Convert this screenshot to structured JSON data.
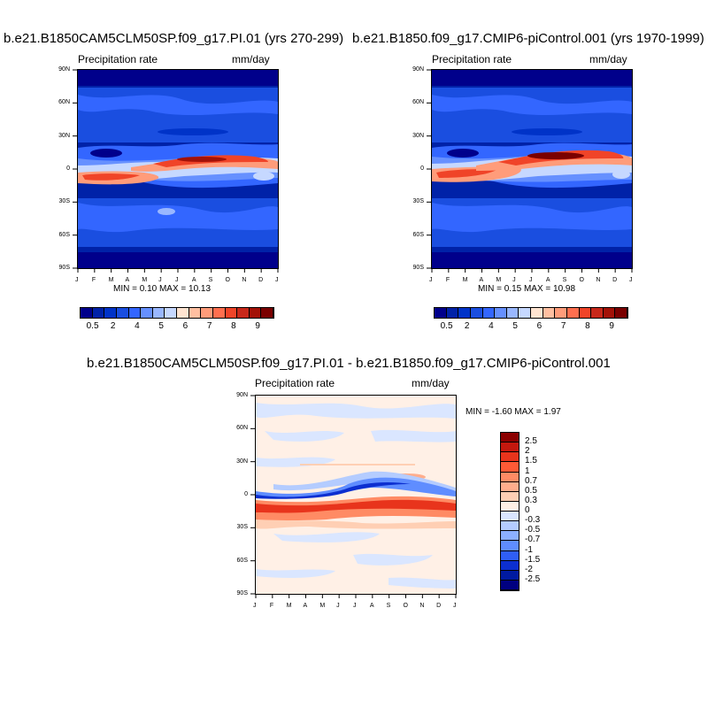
{
  "chart_data": [
    {
      "type": "heatmap",
      "title": "b.e21.B1850CAM5CLM50SP.f09_g17.PI.01 (yrs 270-299)",
      "subtitle_left": "Precipitation rate",
      "subtitle_right": "mm/day",
      "x_tick_labels": [
        "J",
        "F",
        "M",
        "A",
        "M",
        "J",
        "J",
        "A",
        "S",
        "O",
        "N",
        "D",
        "J"
      ],
      "y_tick_labels": [
        "90N",
        "60N",
        "30N",
        "0",
        "30S",
        "60S",
        "90S"
      ],
      "stats": "MIN =   0.10 MAX =  10.13",
      "colorbar_ticks": [
        "0.5",
        "2",
        "4",
        "5",
        "6",
        "7",
        "8",
        "9"
      ],
      "colorbar_colors": [
        "#00008b",
        "#0022a8",
        "#0033c8",
        "#1a4ee0",
        "#3366ff",
        "#6690ff",
        "#99b7ff",
        "#c6d8ff",
        "#ffe4d1",
        "#ffbfa1",
        "#ff9c7a",
        "#ff6f4f",
        "#f04428",
        "#c8281a",
        "#a31208",
        "#7a0000"
      ]
    },
    {
      "type": "heatmap",
      "title": "b.e21.B1850.f09_g17.CMIP6-piControl.001 (yrs 1970-1999)",
      "subtitle_left": "Precipitation rate",
      "subtitle_right": "mm/day",
      "x_tick_labels": [
        "J",
        "F",
        "M",
        "A",
        "M",
        "J",
        "J",
        "A",
        "S",
        "O",
        "N",
        "D",
        "J"
      ],
      "y_tick_labels": [
        "90N",
        "60N",
        "30N",
        "0",
        "30S",
        "60S",
        "90S"
      ],
      "stats": "MIN =   0.15 MAX =  10.98",
      "colorbar_ticks": [
        "0.5",
        "2",
        "4",
        "5",
        "6",
        "7",
        "8",
        "9"
      ],
      "colorbar_colors": [
        "#00008b",
        "#0022a8",
        "#0033c8",
        "#1a4ee0",
        "#3366ff",
        "#6690ff",
        "#99b7ff",
        "#c6d8ff",
        "#ffe4d1",
        "#ffbfa1",
        "#ff9c7a",
        "#ff6f4f",
        "#f04428",
        "#c8281a",
        "#a31208",
        "#7a0000"
      ]
    },
    {
      "type": "heatmap",
      "title": "b.e21.B1850CAM5CLM50SP.f09_g17.PI.01 - b.e21.B1850.f09_g17.CMIP6-piControl.001",
      "subtitle_left": "Precipitation rate",
      "subtitle_right": "mm/day",
      "x_tick_labels": [
        "J",
        "F",
        "M",
        "A",
        "M",
        "J",
        "J",
        "A",
        "S",
        "O",
        "N",
        "D",
        "J"
      ],
      "y_tick_labels": [
        "90N",
        "60N",
        "30N",
        "0",
        "30S",
        "60S",
        "90S"
      ],
      "stats": "MIN =  -1.60 MAX =   1.97",
      "colorbar_ticks": [
        "2.5",
        "2",
        "1.5",
        "1",
        "0.7",
        "0.5",
        "0.3",
        "0",
        "-0.3",
        "-0.5",
        "-0.7",
        "-1",
        "-1.5",
        "-2",
        "-2.5"
      ],
      "colorbar_colors": [
        "#8b0000",
        "#c4180e",
        "#e8341c",
        "#ff5a36",
        "#ff8b64",
        "#ffad8c",
        "#ffcfb4",
        "#fff0e6",
        "#dae6ff",
        "#b4ccff",
        "#8cb0ff",
        "#5f8dff",
        "#2f5ef5",
        "#0c2fd0",
        "#001aa0",
        "#000080"
      ]
    }
  ]
}
